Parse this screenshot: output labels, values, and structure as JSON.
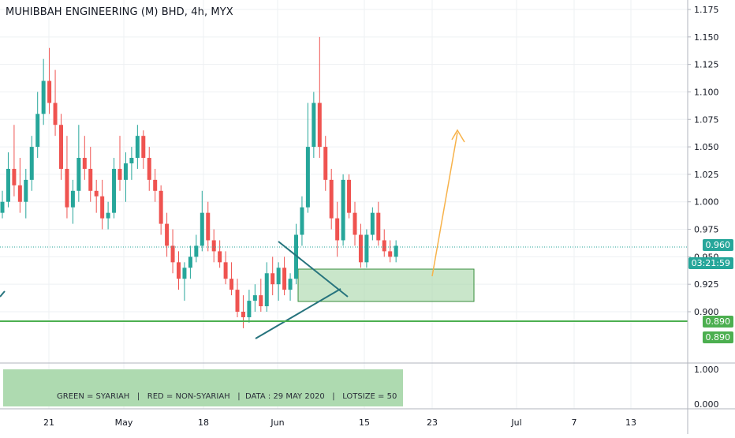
{
  "chart_data": {
    "type": "candlestick",
    "title": "MUHIBBAH ENGINEERING (M) BHD, 4h, MYX",
    "price_axis": {
      "ticks": [
        "1.175",
        "1.150",
        "1.125",
        "1.100",
        "1.075",
        "1.050",
        "1.025",
        "1.000",
        "0.975",
        "0.950",
        "0.925",
        "0.900"
      ],
      "range": [
        0.875,
        1.18
      ]
    },
    "indicator_axis": {
      "ticks": [
        "1.000",
        "0.000"
      ]
    },
    "time_axis": {
      "ticks": [
        "21",
        "May",
        "18",
        "Jun",
        "15",
        "23",
        "Jul",
        "7",
        "13"
      ]
    },
    "last_price": "0.960",
    "countdown": "03:21:59",
    "support_level": "0.890",
    "support_level_2": "0.890",
    "footer_label": "GREEN = SYARIAH   |   RED = NON-SYARIAH   |  DATA : 29 MAY 2020   |   LOTSIZE = 50",
    "colors": {
      "up": "#26a69a",
      "down": "#ef5350",
      "box": "#a5d6a7",
      "line": "#4caf50",
      "arrow": "#f7b24a",
      "triangle": "#26737d",
      "last": "#26a69a",
      "countdown": "#26a69a"
    },
    "candles": [
      [
        0.99,
        1.01,
        0.985,
        1.0
      ],
      [
        1.0,
        1.045,
        0.995,
        1.03
      ],
      [
        1.03,
        1.07,
        1.005,
        1.015
      ],
      [
        1.015,
        1.04,
        0.99,
        1.0
      ],
      [
        1.0,
        1.03,
        0.985,
        1.02
      ],
      [
        1.02,
        1.06,
        1.01,
        1.05
      ],
      [
        1.05,
        1.1,
        1.04,
        1.08
      ],
      [
        1.08,
        1.13,
        1.07,
        1.11
      ],
      [
        1.11,
        1.14,
        1.08,
        1.09
      ],
      [
        1.09,
        1.12,
        1.06,
        1.07
      ],
      [
        1.07,
        1.08,
        1.02,
        1.03
      ],
      [
        1.03,
        1.06,
        0.985,
        0.995
      ],
      [
        0.995,
        1.02,
        0.98,
        1.01
      ],
      [
        1.01,
        1.07,
        1.0,
        1.04
      ],
      [
        1.04,
        1.06,
        1.02,
        1.03
      ],
      [
        1.03,
        1.05,
        1.0,
        1.01
      ],
      [
        1.01,
        1.02,
        0.99,
        1.005
      ],
      [
        1.005,
        1.02,
        0.975,
        0.985
      ],
      [
        0.985,
        1.0,
        0.975,
        0.99
      ],
      [
        0.99,
        1.04,
        0.985,
        1.03
      ],
      [
        1.03,
        1.06,
        1.01,
        1.02
      ],
      [
        1.02,
        1.045,
        1.0,
        1.035
      ],
      [
        1.035,
        1.05,
        1.02,
        1.04
      ],
      [
        1.04,
        1.07,
        1.03,
        1.06
      ],
      [
        1.06,
        1.065,
        1.03,
        1.04
      ],
      [
        1.04,
        1.05,
        1.01,
        1.02
      ],
      [
        1.02,
        1.03,
        1.0,
        1.01
      ],
      [
        1.01,
        1.015,
        0.97,
        0.98
      ],
      [
        0.98,
        0.99,
        0.95,
        0.96
      ],
      [
        0.96,
        0.975,
        0.935,
        0.945
      ],
      [
        0.945,
        0.955,
        0.92,
        0.93
      ],
      [
        0.93,
        0.945,
        0.91,
        0.94
      ],
      [
        0.94,
        0.96,
        0.93,
        0.95
      ],
      [
        0.95,
        0.97,
        0.945,
        0.96
      ],
      [
        0.96,
        1.01,
        0.955,
        0.99
      ],
      [
        0.99,
        1.0,
        0.955,
        0.965
      ],
      [
        0.965,
        0.975,
        0.945,
        0.955
      ],
      [
        0.955,
        0.965,
        0.94,
        0.945
      ],
      [
        0.945,
        0.955,
        0.925,
        0.93
      ],
      [
        0.93,
        0.945,
        0.915,
        0.92
      ],
      [
        0.92,
        0.93,
        0.895,
        0.9
      ],
      [
        0.9,
        0.915,
        0.885,
        0.895
      ],
      [
        0.895,
        0.92,
        0.89,
        0.91
      ],
      [
        0.91,
        0.925,
        0.9,
        0.915
      ],
      [
        0.915,
        0.93,
        0.9,
        0.905
      ],
      [
        0.905,
        0.945,
        0.9,
        0.935
      ],
      [
        0.935,
        0.95,
        0.915,
        0.925
      ],
      [
        0.925,
        0.945,
        0.91,
        0.94
      ],
      [
        0.94,
        0.95,
        0.915,
        0.92
      ],
      [
        0.92,
        0.935,
        0.91,
        0.93
      ],
      [
        0.93,
        0.98,
        0.925,
        0.97
      ],
      [
        0.97,
        1.005,
        0.96,
        0.995
      ],
      [
        0.995,
        1.09,
        0.99,
        1.05
      ],
      [
        1.05,
        1.1,
        1.04,
        1.09
      ],
      [
        1.09,
        1.15,
        1.04,
        1.05
      ],
      [
        1.05,
        1.06,
        1.01,
        1.02
      ],
      [
        1.02,
        1.03,
        0.975,
        0.985
      ],
      [
        0.985,
        1.0,
        0.95,
        0.965
      ],
      [
        0.965,
        1.025,
        0.96,
        1.02
      ],
      [
        1.02,
        1.025,
        0.985,
        0.99
      ],
      [
        0.99,
        1.0,
        0.96,
        0.97
      ],
      [
        0.97,
        0.98,
        0.94,
        0.945
      ],
      [
        0.945,
        0.975,
        0.94,
        0.97
      ],
      [
        0.97,
        0.995,
        0.965,
        0.99
      ],
      [
        0.99,
        1.0,
        0.96,
        0.965
      ],
      [
        0.965,
        0.975,
        0.95,
        0.955
      ],
      [
        0.955,
        0.965,
        0.945,
        0.95
      ],
      [
        0.95,
        0.965,
        0.945,
        0.96
      ]
    ]
  }
}
